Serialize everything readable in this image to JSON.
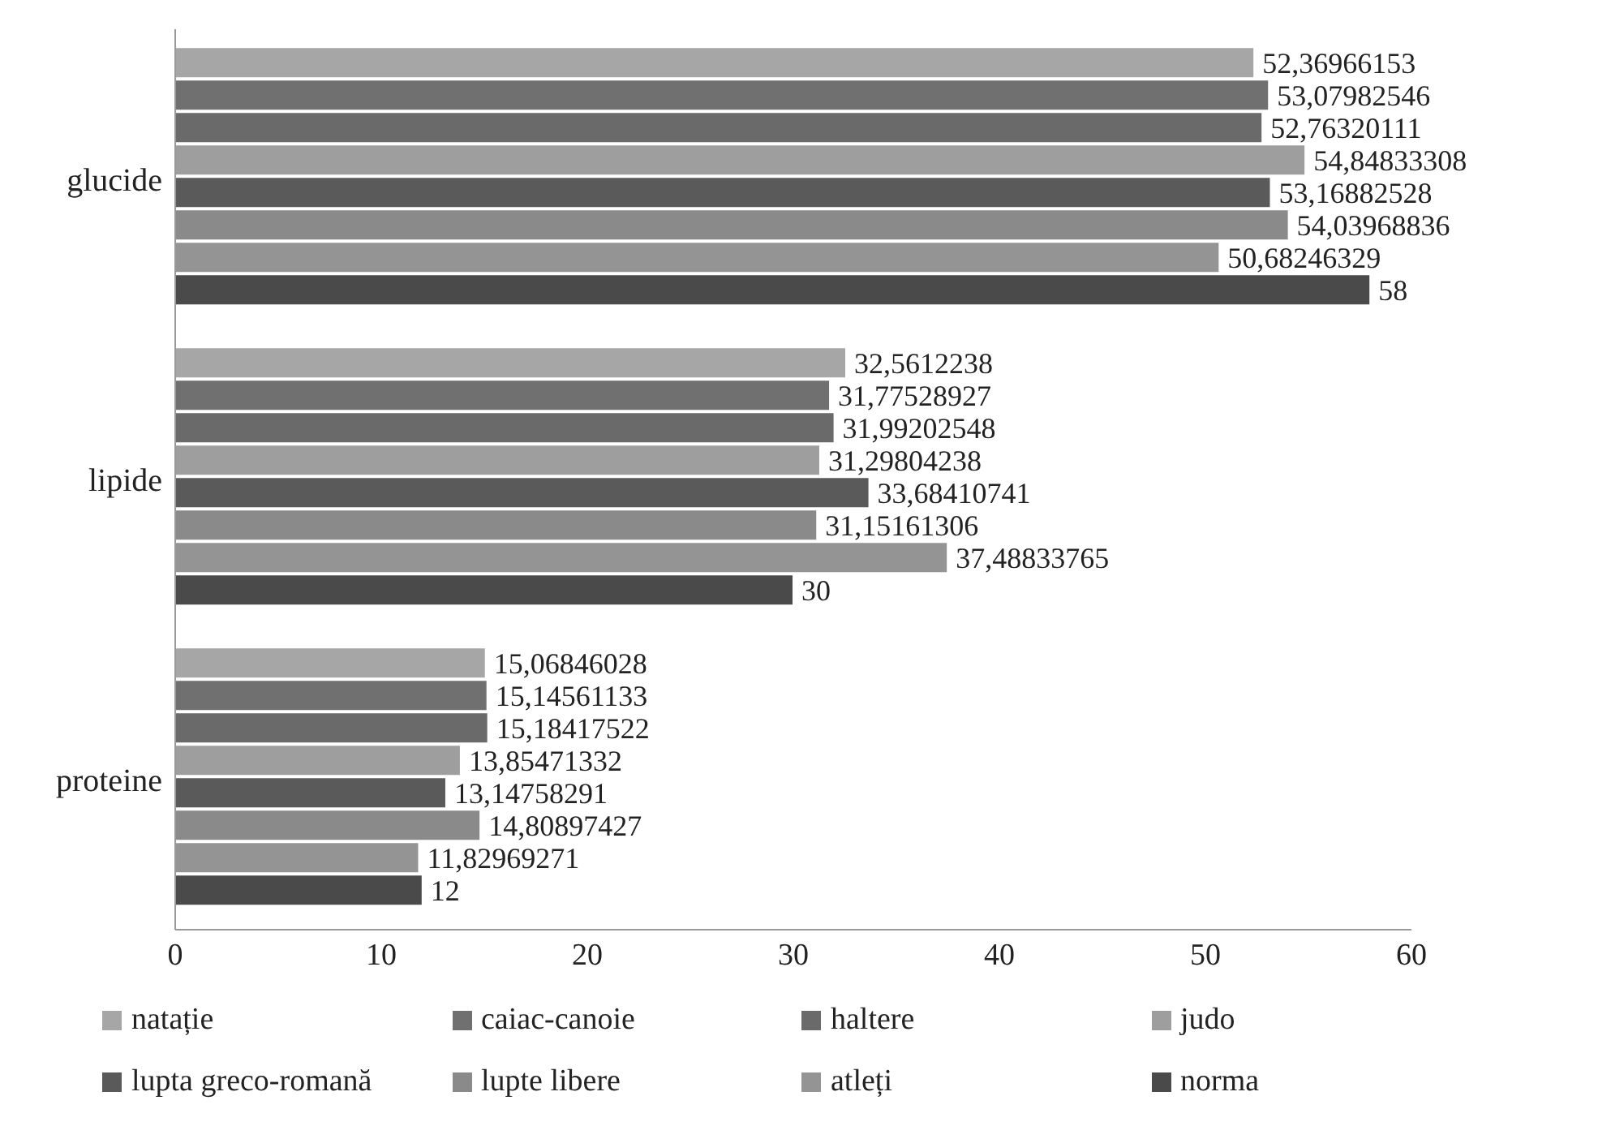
{
  "chart_data": {
    "type": "bar",
    "orientation": "horizontal",
    "categories": [
      "glucide",
      "lipide",
      "proteine"
    ],
    "xlim": [
      0,
      60
    ],
    "xticks": [
      0,
      10,
      20,
      30,
      40,
      50,
      60
    ],
    "legend": "bottom",
    "series": [
      {
        "name": "natație",
        "color": "#a6a6a6",
        "values": [
          52.36966153,
          32.5612238,
          15.06846028
        ],
        "value_labels": [
          "52,36966153",
          "32,5612238",
          "15,06846028"
        ]
      },
      {
        "name": "caiac-canoie",
        "color": "#707070",
        "values": [
          53.07982546,
          31.77528927,
          15.14561133
        ],
        "value_labels": [
          "53,07982546",
          "31,77528927",
          "15,14561133"
        ]
      },
      {
        "name": "haltere",
        "color": "#6a6a6a",
        "values": [
          52.76320111,
          31.99202548,
          15.18417522
        ],
        "value_labels": [
          "52,76320111",
          "31,99202548",
          "15,18417522"
        ]
      },
      {
        "name": "judo",
        "color": "#9e9e9e",
        "values": [
          54.84833308,
          31.29804238,
          13.85471332
        ],
        "value_labels": [
          "54,84833308",
          "31,29804238",
          "13,85471332"
        ]
      },
      {
        "name": "lupta greco-romană",
        "color": "#5a5a5a",
        "values": [
          53.16882528,
          33.68410741,
          13.14758291
        ],
        "value_labels": [
          "53,16882528",
          "33,68410741",
          "13,14758291"
        ]
      },
      {
        "name": "lupte libere",
        "color": "#8a8a8a",
        "values": [
          54.03968836,
          31.15161306,
          14.80897427
        ],
        "value_labels": [
          "54,03968836",
          "31,15161306",
          "14,80897427"
        ]
      },
      {
        "name": "atleți",
        "color": "#949494",
        "values": [
          50.68246329,
          37.48833765,
          11.82969271
        ],
        "value_labels": [
          "50,68246329",
          "37,48833765",
          "11,82969271"
        ]
      },
      {
        "name": "norma",
        "color": "#4a4a4a",
        "values": [
          58,
          30,
          12
        ],
        "value_labels": [
          "58",
          "30",
          "12"
        ]
      }
    ]
  }
}
